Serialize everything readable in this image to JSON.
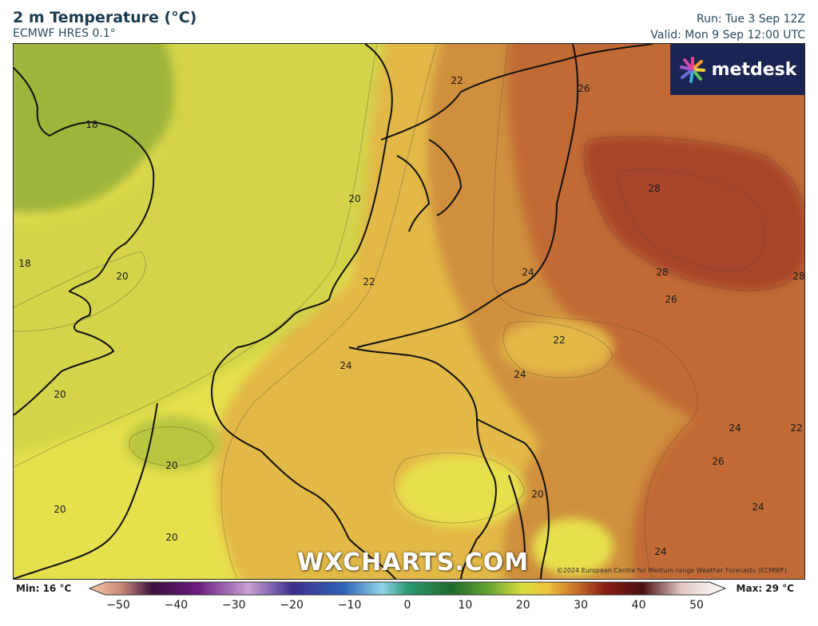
{
  "header": {
    "title": "2 m Temperature (°C)",
    "model": "ECMWF HRES 0.1°",
    "run": "Run: Tue 3 Sep 12Z",
    "valid": "Valid: Mon 9 Sep 12:00 UTC"
  },
  "logo": {
    "text": "metdesk",
    "icon": "metdesk-burst-icon"
  },
  "watermark": "WXCHARTS.COM",
  "copyright": "©2024 European Centre for Medium-range Weather Forecasts (ECMWF)",
  "contour_labels": [
    "22",
    "26",
    "18",
    "28",
    "20",
    "18",
    "20",
    "22",
    "24",
    "28",
    "28",
    "26",
    "22",
    "24",
    "24",
    "20",
    "24",
    "22",
    "20",
    "26",
    "20",
    "20",
    "24",
    "20",
    "24"
  ],
  "legend": {
    "min": "Min: 16 °C",
    "max": "Max: 29 °C",
    "ticks": [
      "−50",
      "−40",
      "−30",
      "−20",
      "−10",
      "0",
      "10",
      "20",
      "30",
      "40",
      "50"
    ],
    "range": [
      -50,
      50
    ],
    "stops": [
      {
        "v": -50,
        "c": "#f7c9a8"
      },
      {
        "v": -45,
        "c": "#c98a7a"
      },
      {
        "v": -40,
        "c": "#3b0f3c"
      },
      {
        "v": -33,
        "c": "#6a1c7e"
      },
      {
        "v": -25,
        "c": "#c9a1d6"
      },
      {
        "v": -18,
        "c": "#3d2e8c"
      },
      {
        "v": -10,
        "c": "#2f64b8"
      },
      {
        "v": -4,
        "c": "#8fd3e8"
      },
      {
        "v": 0,
        "c": "#2e9a74"
      },
      {
        "v": 7,
        "c": "#1f6b2a"
      },
      {
        "v": 13,
        "c": "#6aa834"
      },
      {
        "v": 18,
        "c": "#d8dc3c"
      },
      {
        "v": 22,
        "c": "#ecc43c"
      },
      {
        "v": 26,
        "c": "#cf7a2c"
      },
      {
        "v": 31,
        "c": "#8c1e14"
      },
      {
        "v": 37,
        "c": "#4a0f10"
      },
      {
        "v": 43,
        "c": "#e2c7c2"
      },
      {
        "v": 50,
        "c": "#ffffff"
      }
    ]
  },
  "colors": {
    "t16": "#9eb53a",
    "t18": "#b9c640",
    "t19": "#d3d44a",
    "t20": "#e7e04e",
    "t22": "#e2b846",
    "t24": "#cf8f3e",
    "t26": "#c26a34",
    "t28": "#a9452a"
  }
}
